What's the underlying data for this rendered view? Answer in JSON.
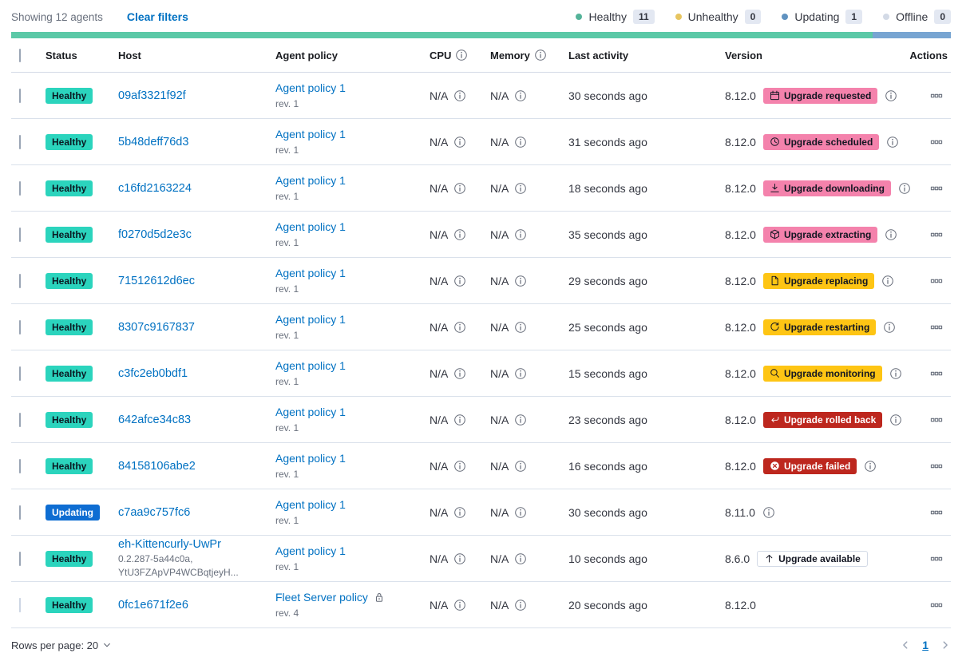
{
  "toolbar": {
    "showing_text": "Showing 12 agents",
    "clear_filters_label": "Clear filters"
  },
  "legend": {
    "items": [
      {
        "label": "Healthy",
        "count": "11",
        "color": "#54B399"
      },
      {
        "label": "Unhealthy",
        "count": "0",
        "color": "#E7C560"
      },
      {
        "label": "Updating",
        "count": "1",
        "color": "#6092C0"
      },
      {
        "label": "Offline",
        "count": "0",
        "color": "#D3DAE6"
      }
    ]
  },
  "status_bar": {
    "segments": [
      {
        "name": "healthy-segment",
        "color": "#5BC9A7",
        "fraction": 0.9167
      },
      {
        "name": "updating-segment",
        "color": "#78A5D2",
        "fraction": 0.0833
      }
    ]
  },
  "table": {
    "columns": [
      {
        "label": "Status"
      },
      {
        "label": "Host"
      },
      {
        "label": "Agent policy"
      },
      {
        "label": "CPU",
        "info": true
      },
      {
        "label": "Memory",
        "info": true
      },
      {
        "label": "Last activity"
      },
      {
        "label": "Version"
      },
      {
        "label": "Actions"
      }
    ],
    "rows": [
      {
        "status": {
          "label": "Healthy",
          "variant": "healthy"
        },
        "host": "09af3321f92f",
        "policy": "Agent policy 1",
        "policy_rev": "rev. 1",
        "policy_locked": false,
        "cpu": "N/A",
        "memory": "N/A",
        "last_activity": "30 seconds ago",
        "version": "8.12.0",
        "upgrade_badge": {
          "label": "Upgrade requested",
          "variant": "pink",
          "icon": "calendar-icon"
        },
        "version_info": true,
        "checkbox_disabled": false
      },
      {
        "status": {
          "label": "Healthy",
          "variant": "healthy"
        },
        "host": "5b48deff76d3",
        "policy": "Agent policy 1",
        "policy_rev": "rev. 1",
        "policy_locked": false,
        "cpu": "N/A",
        "memory": "N/A",
        "last_activity": "31 seconds ago",
        "version": "8.12.0",
        "upgrade_badge": {
          "label": "Upgrade scheduled",
          "variant": "pink",
          "icon": "clock-icon"
        },
        "version_info": true,
        "checkbox_disabled": false
      },
      {
        "status": {
          "label": "Healthy",
          "variant": "healthy"
        },
        "host": "c16fd2163224",
        "policy": "Agent policy 1",
        "policy_rev": "rev. 1",
        "policy_locked": false,
        "cpu": "N/A",
        "memory": "N/A",
        "last_activity": "18 seconds ago",
        "version": "8.12.0",
        "upgrade_badge": {
          "label": "Upgrade downloading",
          "variant": "pink",
          "icon": "download-icon"
        },
        "version_info": true,
        "checkbox_disabled": false
      },
      {
        "status": {
          "label": "Healthy",
          "variant": "healthy"
        },
        "host": "f0270d5d2e3c",
        "policy": "Agent policy 1",
        "policy_rev": "rev. 1",
        "policy_locked": false,
        "cpu": "N/A",
        "memory": "N/A",
        "last_activity": "35 seconds ago",
        "version": "8.12.0",
        "upgrade_badge": {
          "label": "Upgrade extracting",
          "variant": "pink",
          "icon": "package-icon"
        },
        "version_info": true,
        "checkbox_disabled": false
      },
      {
        "status": {
          "label": "Healthy",
          "variant": "healthy"
        },
        "host": "71512612d6ec",
        "policy": "Agent policy 1",
        "policy_rev": "rev. 1",
        "policy_locked": false,
        "cpu": "N/A",
        "memory": "N/A",
        "last_activity": "29 seconds ago",
        "version": "8.12.0",
        "upgrade_badge": {
          "label": "Upgrade replacing",
          "variant": "yellow",
          "icon": "document-icon"
        },
        "version_info": true,
        "checkbox_disabled": false
      },
      {
        "status": {
          "label": "Healthy",
          "variant": "healthy"
        },
        "host": "8307c9167837",
        "policy": "Agent policy 1",
        "policy_rev": "rev. 1",
        "policy_locked": false,
        "cpu": "N/A",
        "memory": "N/A",
        "last_activity": "25 seconds ago",
        "version": "8.12.0",
        "upgrade_badge": {
          "label": "Upgrade restarting",
          "variant": "yellow",
          "icon": "refresh-icon"
        },
        "version_info": true,
        "checkbox_disabled": false
      },
      {
        "status": {
          "label": "Healthy",
          "variant": "healthy"
        },
        "host": "c3fc2eb0bdf1",
        "policy": "Agent policy 1",
        "policy_rev": "rev. 1",
        "policy_locked": false,
        "cpu": "N/A",
        "memory": "N/A",
        "last_activity": "15 seconds ago",
        "version": "8.12.0",
        "upgrade_badge": {
          "label": "Upgrade monitoring",
          "variant": "yellow",
          "icon": "inspect-icon"
        },
        "version_info": true,
        "checkbox_disabled": false
      },
      {
        "status": {
          "label": "Healthy",
          "variant": "healthy"
        },
        "host": "642afce34c83",
        "policy": "Agent policy 1",
        "policy_rev": "rev. 1",
        "policy_locked": false,
        "cpu": "N/A",
        "memory": "N/A",
        "last_activity": "23 seconds ago",
        "version": "8.12.0",
        "upgrade_badge": {
          "label": "Upgrade rolled back",
          "variant": "red",
          "icon": "return-icon"
        },
        "version_info": true,
        "checkbox_disabled": false
      },
      {
        "status": {
          "label": "Healthy",
          "variant": "healthy"
        },
        "host": "84158106abe2",
        "policy": "Agent policy 1",
        "policy_rev": "rev. 1",
        "policy_locked": false,
        "cpu": "N/A",
        "memory": "N/A",
        "last_activity": "16 seconds ago",
        "version": "8.12.0",
        "upgrade_badge": {
          "label": "Upgrade failed",
          "variant": "red",
          "icon": "error-icon"
        },
        "version_info": true,
        "checkbox_disabled": false
      },
      {
        "status": {
          "label": "Updating",
          "variant": "updating"
        },
        "host": "c7aa9c757fc6",
        "policy": "Agent policy 1",
        "policy_rev": "rev. 1",
        "policy_locked": false,
        "cpu": "N/A",
        "memory": "N/A",
        "last_activity": "30 seconds ago",
        "version": "8.11.0",
        "upgrade_badge": null,
        "version_info": true,
        "checkbox_disabled": false
      },
      {
        "status": {
          "label": "Healthy",
          "variant": "healthy"
        },
        "host": "eh-Kittencurly-UwPr",
        "host_sub_lines": [
          "0.2.287-5a44c0a,",
          "YtU3FZApVP4WCBqtjeyH..."
        ],
        "policy": "Agent policy 1",
        "policy_rev": "rev. 1",
        "policy_locked": false,
        "cpu": "N/A",
        "memory": "N/A",
        "last_activity": "10 seconds ago",
        "version": "8.6.0",
        "upgrade_badge": {
          "label": "Upgrade available",
          "variant": "outline",
          "icon": "up-arrow-icon"
        },
        "version_info": false,
        "checkbox_disabled": false
      },
      {
        "status": {
          "label": "Healthy",
          "variant": "healthy"
        },
        "host": "0fc1e671f2e6",
        "policy": "Fleet Server policy",
        "policy_rev": "rev. 4",
        "policy_locked": true,
        "cpu": "N/A",
        "memory": "N/A",
        "last_activity": "20 seconds ago",
        "version": "8.12.0",
        "upgrade_badge": null,
        "version_info": false,
        "checkbox_disabled": true
      }
    ]
  },
  "footer": {
    "rows_per_page_label": "Rows per page: 20",
    "pagination": {
      "current_page": "1"
    }
  },
  "colors": {
    "link_blue": "#0071C2",
    "healthy_badge": "#2BD4BD",
    "updating_badge": "#0E6DD2",
    "upgrade_pink": "#F482AC",
    "upgrade_yellow": "#FEC514",
    "upgrade_red": "#BD271E",
    "bar_healthy": "#5BC9A7",
    "bar_updating": "#78A5D2"
  }
}
